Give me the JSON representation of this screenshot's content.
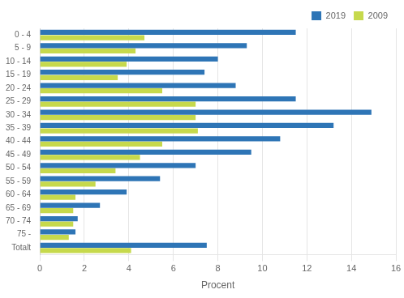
{
  "chart_data": {
    "type": "bar",
    "orientation": "horizontal",
    "categories": [
      "0 - 4",
      "5 - 9",
      "10 - 14",
      "15 - 19",
      "20 - 24",
      "25 - 29",
      "30 - 34",
      "35 - 39",
      "40 - 44",
      "45 - 49",
      "50 - 54",
      "55 - 59",
      "60 - 64",
      "65 - 69",
      "70 - 74",
      "75 -",
      "Totalt"
    ],
    "series": [
      {
        "name": "2019",
        "color": "#2E75B6",
        "values": [
          11.5,
          9.3,
          8.0,
          7.4,
          8.8,
          11.5,
          14.9,
          13.2,
          10.8,
          9.5,
          7.0,
          5.4,
          3.9,
          2.7,
          1.7,
          1.6,
          7.5
        ]
      },
      {
        "name": "2009",
        "color": "#C6D94C",
        "values": [
          4.7,
          4.3,
          3.9,
          3.5,
          5.5,
          7.0,
          7.0,
          7.1,
          5.5,
          4.5,
          3.4,
          2.5,
          1.6,
          1.5,
          1.5,
          1.3,
          4.1
        ]
      }
    ],
    "xlabel": "Procent",
    "xlim": [
      0,
      16
    ],
    "xticks": [
      0,
      2,
      4,
      6,
      8,
      10,
      12,
      14,
      16
    ],
    "grid": true,
    "legend": "upper right"
  }
}
